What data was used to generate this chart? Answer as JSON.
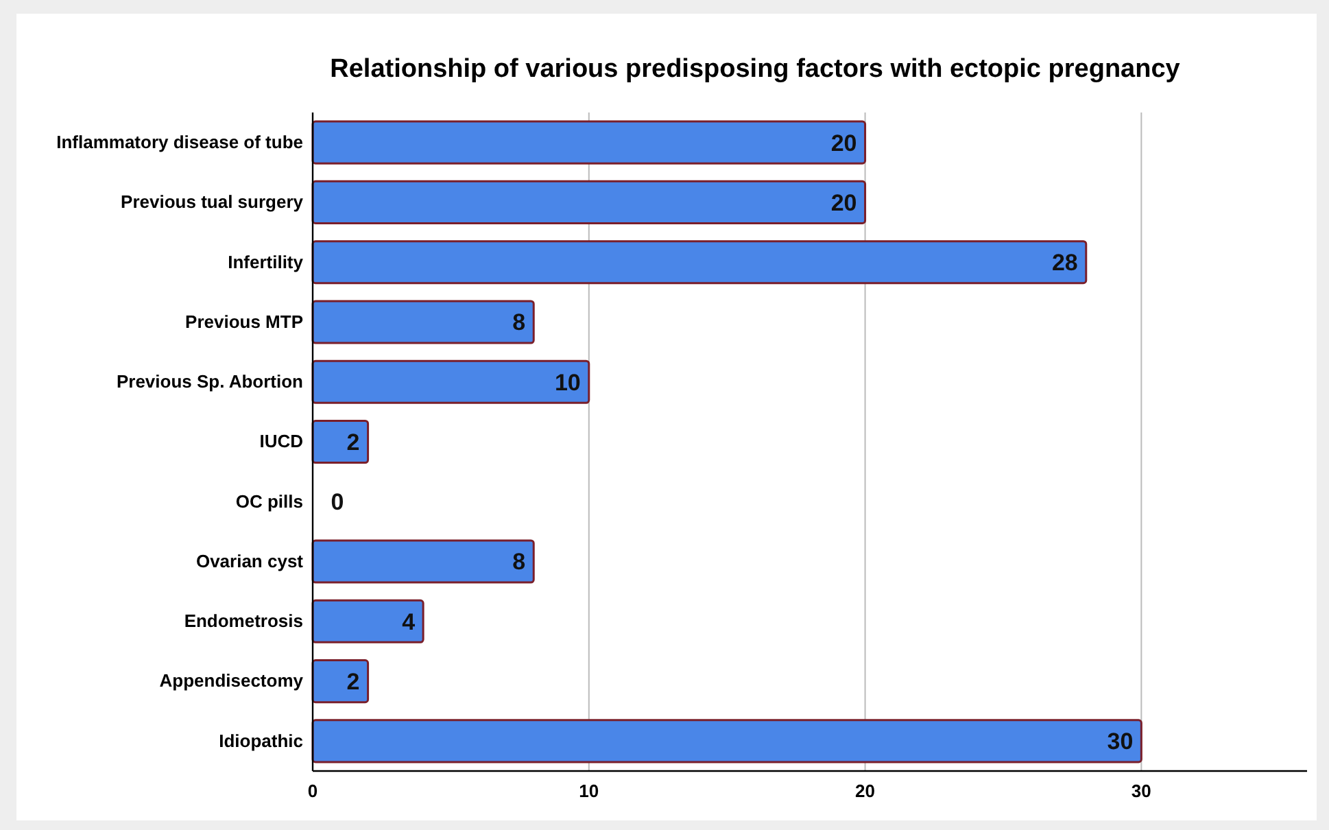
{
  "chart_data": {
    "type": "bar",
    "orientation": "horizontal",
    "title": "Relationship of various predisposing factors with ectopic pregnancy",
    "categories": [
      "Inflammatory disease of tube",
      "Previous tual surgery",
      "Infertility",
      "Previous MTP",
      "Previous Sp. Abortion",
      "IUCD",
      "OC pills",
      "Ovarian cyst",
      "Endometrosis",
      "Appendisectomy",
      "Idiopathic"
    ],
    "values": [
      20,
      20,
      28,
      8,
      10,
      2,
      0,
      8,
      4,
      2,
      30
    ],
    "color": "#4a86e8",
    "xlim": [
      0,
      36
    ],
    "xticks": [
      0,
      10,
      20,
      30
    ],
    "grid": "x",
    "data_labels": true
  }
}
